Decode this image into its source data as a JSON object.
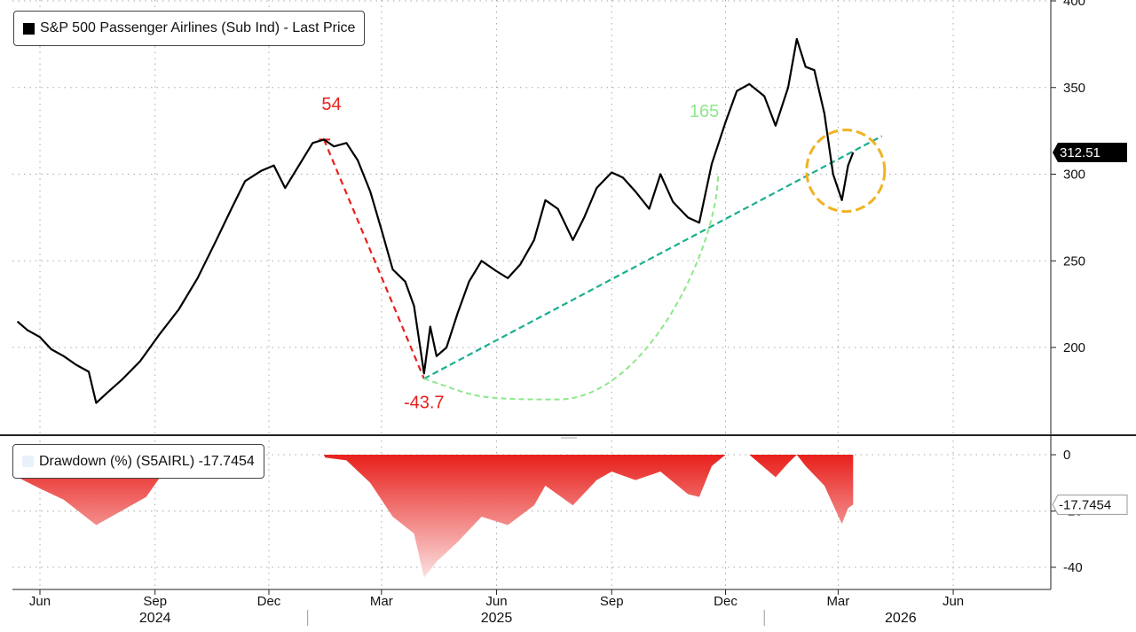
{
  "chart_data": [
    {
      "type": "line",
      "name": "S&P 500 Passenger Airlines (Sub Ind) - Last Price",
      "legend": "S&P 500 Passenger Airlines (Sub Ind) - Last Price",
      "y_ticks": [
        "200",
        "250",
        "300",
        "350",
        "400"
      ],
      "ylim": [
        165,
        400
      ],
      "last_value_label": "312.51",
      "colors": {
        "line": "#000000",
        "peak_drop": "#e8201c",
        "recovery": "#8de88a",
        "trendline": "#1aaf8f",
        "highlight": "#f0b323"
      },
      "series": [
        {
          "name": "S&P 500 Passenger Airlines (Sub Ind) - Last Price",
          "points": [
            [
              "2024-05-14",
              215
            ],
            [
              "2024-05-22",
              210
            ],
            [
              "2024-06-01",
              206
            ],
            [
              "2024-06-10",
              199
            ],
            [
              "2024-06-20",
              195
            ],
            [
              "2024-06-30",
              190
            ],
            [
              "2024-07-10",
              186
            ],
            [
              "2024-07-16",
              168
            ],
            [
              "2024-07-25",
              174
            ],
            [
              "2024-08-05",
              181
            ],
            [
              "2024-08-20",
              192
            ],
            [
              "2024-09-05",
              208
            ],
            [
              "2024-09-20",
              222
            ],
            [
              "2024-10-05",
              240
            ],
            [
              "2024-10-20",
              262
            ],
            [
              "2024-11-01",
              280
            ],
            [
              "2024-11-12",
              296
            ],
            [
              "2024-11-25",
              302
            ],
            [
              "2024-12-05",
              305
            ],
            [
              "2024-12-14",
              292
            ],
            [
              "2024-12-25",
              305
            ],
            [
              "2025-01-05",
              318
            ],
            [
              "2025-01-14",
              320
            ],
            [
              "2025-01-22",
              316
            ],
            [
              "2025-02-01",
              318
            ],
            [
              "2025-02-10",
              308
            ],
            [
              "2025-02-20",
              290
            ],
            [
              "2025-03-01",
              268
            ],
            [
              "2025-03-10",
              245
            ],
            [
              "2025-03-20",
              238
            ],
            [
              "2025-03-27",
              224
            ],
            [
              "2025-04-04",
              185
            ],
            [
              "2025-04-09",
              212
            ],
            [
              "2025-04-14",
              195
            ],
            [
              "2025-04-22",
              200
            ],
            [
              "2025-05-01",
              220
            ],
            [
              "2025-05-10",
              238
            ],
            [
              "2025-05-20",
              250
            ],
            [
              "2025-06-01",
              244
            ],
            [
              "2025-06-10",
              240
            ],
            [
              "2025-06-20",
              248
            ],
            [
              "2025-07-01",
              262
            ],
            [
              "2025-07-10",
              285
            ],
            [
              "2025-07-20",
              280
            ],
            [
              "2025-08-01",
              262
            ],
            [
              "2025-08-10",
              275
            ],
            [
              "2025-08-20",
              292
            ],
            [
              "2025-09-01",
              301
            ],
            [
              "2025-09-10",
              298
            ],
            [
              "2025-09-20",
              290
            ],
            [
              "2025-10-01",
              280
            ],
            [
              "2025-10-10",
              300
            ],
            [
              "2025-10-20",
              284
            ],
            [
              "2025-11-01",
              275
            ],
            [
              "2025-11-10",
              272
            ],
            [
              "2025-11-20",
              306
            ],
            [
              "2025-12-01",
              330
            ],
            [
              "2025-12-10",
              348
            ],
            [
              "2025-12-20",
              352
            ],
            [
              "2026-01-01",
              345
            ],
            [
              "2026-01-10",
              328
            ],
            [
              "2026-01-20",
              350
            ],
            [
              "2026-01-27",
              378
            ],
            [
              "2026-02-03",
              362
            ],
            [
              "2026-02-10",
              360
            ],
            [
              "2026-02-18",
              335
            ],
            [
              "2026-02-25",
              300
            ],
            [
              "2026-03-04",
              285
            ],
            [
              "2026-03-09",
              305
            ],
            [
              "2026-03-13",
              312.51
            ]
          ]
        }
      ],
      "annotations": [
        {
          "text": "54",
          "color": "#e8201c"
        },
        {
          "text": "-43.7",
          "color": "#e8201c"
        },
        {
          "text": "165",
          "color": "#8de88a"
        }
      ]
    },
    {
      "type": "area",
      "name": "Drawdown (%) (S5AIRL)",
      "legend": "Drawdown (%) (S5AIRL) -17.7454",
      "y_ticks": [
        "0",
        "-20",
        "-40"
      ],
      "ylim": [
        -47,
        2
      ],
      "last_value_label": "-17.7454",
      "colors": {
        "fill_top": "#e8201c",
        "fill_bottom": "#fbe0e0"
      },
      "series": [
        {
          "name": "Drawdown (%) (S5AIRL)",
          "points": [
            [
              "2024-05-14",
              -8
            ],
            [
              "2024-06-01",
              -12
            ],
            [
              "2024-06-20",
              -16
            ],
            [
              "2024-07-16",
              -25
            ],
            [
              "2024-08-05",
              -20
            ],
            [
              "2024-08-25",
              -15
            ],
            [
              "2024-09-05",
              -8
            ],
            [
              "2024-09-15",
              -1
            ],
            [
              "2024-09-16",
              0
            ],
            [
              "2025-01-14",
              0
            ],
            [
              "2025-01-15",
              -1
            ],
            [
              "2025-02-01",
              -2
            ],
            [
              "2025-02-20",
              -10
            ],
            [
              "2025-03-10",
              -22
            ],
            [
              "2025-03-27",
              -28
            ],
            [
              "2025-04-04",
              -43.7
            ],
            [
              "2025-04-14",
              -38
            ],
            [
              "2025-05-01",
              -31
            ],
            [
              "2025-05-20",
              -22
            ],
            [
              "2025-06-10",
              -25
            ],
            [
              "2025-07-01",
              -18
            ],
            [
              "2025-07-10",
              -11
            ],
            [
              "2025-08-01",
              -18
            ],
            [
              "2025-08-20",
              -9
            ],
            [
              "2025-09-01",
              -6
            ],
            [
              "2025-09-20",
              -9
            ],
            [
              "2025-10-10",
              -6
            ],
            [
              "2025-11-01",
              -14
            ],
            [
              "2025-11-10",
              -15
            ],
            [
              "2025-11-20",
              -4
            ],
            [
              "2025-12-01",
              0
            ],
            [
              "2025-12-20",
              0
            ],
            [
              "2026-01-10",
              -8
            ],
            [
              "2026-01-20",
              -3
            ],
            [
              "2026-01-27",
              0
            ],
            [
              "2026-02-03",
              -4
            ],
            [
              "2026-02-18",
              -11
            ],
            [
              "2026-03-04",
              -24.6
            ],
            [
              "2026-03-09",
              -19
            ],
            [
              "2026-03-13",
              -17.7454
            ]
          ]
        }
      ]
    }
  ],
  "x_axis": {
    "months": [
      "Jun",
      "Sep",
      "Dec",
      "Mar",
      "Jun",
      "Sep",
      "Dec",
      "Mar",
      "Jun"
    ],
    "years": [
      "2024",
      "2025",
      "2026"
    ]
  }
}
